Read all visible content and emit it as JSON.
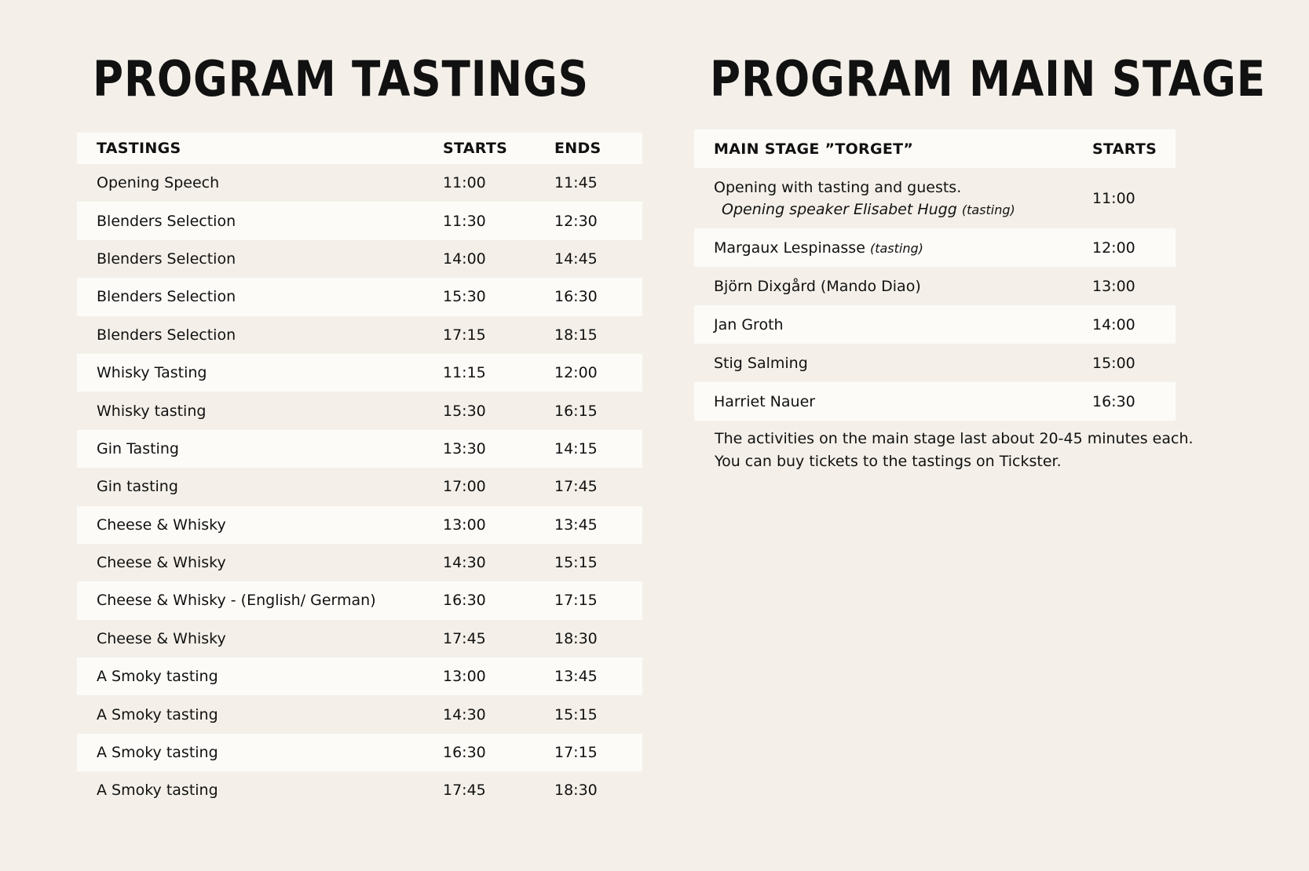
{
  "tastings": {
    "title": "PROGRAM TASTINGS",
    "headers": {
      "name": "TASTINGS",
      "starts": "STARTS",
      "ends": "ENDS"
    },
    "rows": [
      {
        "name": "Opening Speech",
        "starts": "11:00",
        "ends": "11:45"
      },
      {
        "name": "Blenders Selection",
        "starts": "11:30",
        "ends": "12:30"
      },
      {
        "name": "Blenders Selection",
        "starts": "14:00",
        "ends": "14:45"
      },
      {
        "name": "Blenders Selection",
        "starts": "15:30",
        "ends": "16:30"
      },
      {
        "name": "Blenders Selection",
        "starts": "17:15",
        "ends": "18:15"
      },
      {
        "name": "Whisky Tasting",
        "starts": "11:15",
        "ends": "12:00"
      },
      {
        "name": "Whisky tasting",
        "starts": "15:30",
        "ends": "16:15"
      },
      {
        "name": "Gin Tasting",
        "starts": "13:30",
        "ends": "14:15"
      },
      {
        "name": "Gin tasting",
        "starts": "17:00",
        "ends": "17:45"
      },
      {
        "name": "Cheese & Whisky",
        "starts": "13:00",
        "ends": "13:45"
      },
      {
        "name": "Cheese & Whisky",
        "starts": "14:30",
        "ends": "15:15"
      },
      {
        "name": "Cheese & Whisky - (English/ German)",
        "starts": "16:30",
        "ends": "17:15"
      },
      {
        "name": "Cheese & Whisky",
        "starts": "17:45",
        "ends": "18:30"
      },
      {
        "name": "A Smoky tasting",
        "starts": "13:00",
        "ends": "13:45"
      },
      {
        "name": "A Smoky tasting",
        "starts": "14:30",
        "ends": "15:15"
      },
      {
        "name": "A Smoky tasting",
        "starts": "16:30",
        "ends": "17:15"
      },
      {
        "name": "A Smoky tasting",
        "starts": "17:45",
        "ends": "18:30"
      }
    ]
  },
  "main_stage": {
    "title": "PROGRAM MAIN STAGE",
    "headers": {
      "name": "MAIN STAGE ”TORGET”",
      "starts": "STARTS"
    },
    "rows": [
      {
        "name": "Opening with tasting and guests.",
        "sub": "Opening speaker Elisabet Hugg",
        "sub_tag": "(tasting)",
        "starts": "11:00"
      },
      {
        "name": "Margaux Lespinasse",
        "tag": "(tasting)",
        "starts": "12:00"
      },
      {
        "name": "Björn Dixgård (Mando Diao)",
        "starts": "13:00"
      },
      {
        "name": "Jan Groth",
        "starts": "14:00"
      },
      {
        "name": "Stig Salming",
        "starts": "15:00"
      },
      {
        "name": "Harriet Nauer",
        "starts": "16:30"
      }
    ],
    "note": [
      "The activities on the main stage last about 20-45 minutes each.",
      "You can buy tickets to the tastings on Tickster."
    ]
  }
}
